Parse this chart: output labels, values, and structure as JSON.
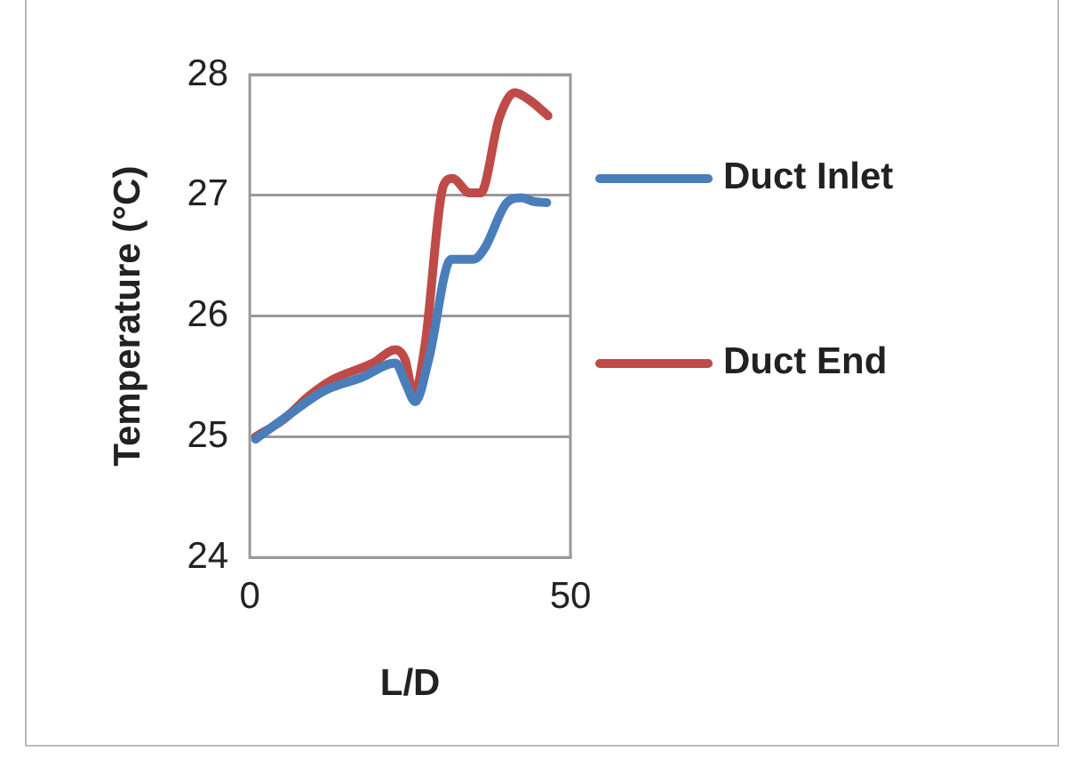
{
  "chart_data": {
    "type": "line",
    "xlabel": "L/D",
    "ylabel": "Temperature (°C)",
    "xlim": [
      0,
      50
    ],
    "xticks": [
      0,
      50
    ],
    "ylim": [
      24,
      28
    ],
    "yticks": [
      24,
      25,
      26,
      27,
      28
    ],
    "grid": "y",
    "legend": "right",
    "marker": "none",
    "line_style": "solid",
    "series": [
      {
        "name": "Duct Inlet",
        "color": "#4a7ebb",
        "x": [
          0.9,
          5.8,
          11.6,
          17.4,
          22.7,
          24.4,
          25.8,
          27.9,
          31.4,
          34.9,
          36.6,
          40.1,
          42.4,
          44.2,
          46.3
        ],
        "values": [
          24.98,
          25.17,
          25.38,
          25.49,
          25.61,
          25.43,
          25.29,
          25.64,
          26.47,
          26.47,
          26.56,
          26.94,
          26.98,
          26.95,
          26.94
        ]
      },
      {
        "name": "Duct End",
        "color": "#be4b48",
        "x": [
          0.9,
          5.2,
          9.3,
          12.8,
          19.2,
          22.7,
          24.2,
          25.6,
          27.3,
          30.2,
          31.6,
          34.3,
          36.0,
          38.9,
          41.3,
          43.6,
          46.5
        ],
        "values": [
          25.0,
          25.14,
          25.34,
          25.47,
          25.61,
          25.72,
          25.64,
          25.35,
          25.75,
          27.08,
          27.14,
          27.02,
          27.02,
          27.64,
          27.85,
          27.79,
          27.66
        ]
      }
    ]
  }
}
